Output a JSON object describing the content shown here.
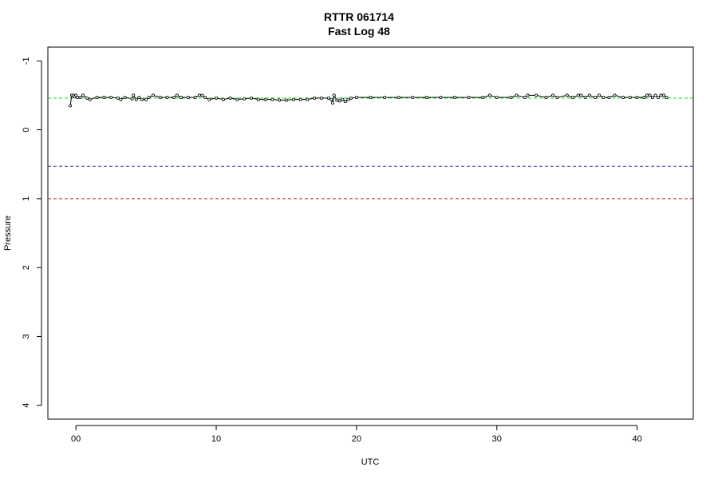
{
  "chart_data": {
    "type": "line",
    "title": "RTTR 061714",
    "subtitle": "Fast Log 48",
    "xlabel": "UTC",
    "ylabel": "Pressure",
    "xlim": [
      -2,
      44
    ],
    "ylim": [
      4.2,
      -1.2
    ],
    "y_reversed": true,
    "x_ticks": [
      0,
      10,
      20,
      30,
      40
    ],
    "x_tick_labels": [
      "00",
      "10",
      "20",
      "30",
      "40"
    ],
    "y_ticks": [
      -1,
      0,
      1,
      2,
      3,
      4
    ],
    "y_tick_labels": [
      "-1",
      "0",
      "1",
      "2",
      "3",
      "4"
    ],
    "grid": false,
    "reference_lines": [
      {
        "y": -0.46,
        "color": "#00dd00",
        "style": "dashed"
      },
      {
        "y": 0.53,
        "color": "#3333cc",
        "style": "dashed"
      },
      {
        "y": 1.0,
        "color": "#cc2222",
        "style": "dashed"
      }
    ],
    "series": [
      {
        "color": "#000000",
        "marker": "open-circle",
        "x": [
          -0.4,
          -0.3,
          -0.2,
          -0.1,
          0.0,
          0.1,
          0.3,
          0.5,
          0.8,
          1.0,
          1.5,
          2.0,
          2.5,
          3.0,
          3.2,
          3.5,
          4.0,
          4.1,
          4.3,
          4.5,
          4.7,
          5.0,
          5.2,
          5.5,
          6.0,
          6.5,
          7.0,
          7.2,
          7.5,
          8.0,
          8.5,
          8.8,
          9.0,
          9.2,
          9.5,
          10.0,
          10.5,
          11.0,
          11.5,
          12.0,
          12.5,
          13.0,
          13.5,
          14.0,
          14.5,
          15.0,
          15.5,
          16.0,
          16.5,
          17.0,
          17.5,
          18.0,
          18.2,
          18.3,
          18.4,
          18.6,
          18.8,
          19.0,
          19.2,
          19.4,
          19.6,
          20.0,
          21.0,
          22.0,
          23.0,
          24.0,
          25.0,
          26.0,
          27.0,
          28.0,
          29.0,
          29.5,
          30.0,
          31.0,
          31.4,
          32.0,
          32.2,
          32.8,
          33.5,
          34.0,
          34.3,
          35.0,
          35.4,
          35.8,
          36.0,
          36.3,
          36.6,
          37.0,
          37.3,
          37.6,
          38.0,
          38.4,
          39.0,
          39.5,
          40.0,
          40.5,
          40.7,
          40.9,
          41.1,
          41.3,
          41.5,
          41.7,
          41.9,
          42.1
        ],
        "y": [
          -0.35,
          -0.5,
          -0.5,
          -0.48,
          -0.5,
          -0.47,
          -0.47,
          -0.5,
          -0.46,
          -0.44,
          -0.47,
          -0.47,
          -0.47,
          -0.46,
          -0.44,
          -0.47,
          -0.45,
          -0.5,
          -0.44,
          -0.47,
          -0.44,
          -0.44,
          -0.47,
          -0.5,
          -0.47,
          -0.47,
          -0.47,
          -0.5,
          -0.47,
          -0.47,
          -0.47,
          -0.5,
          -0.5,
          -0.47,
          -0.44,
          -0.46,
          -0.44,
          -0.46,
          -0.44,
          -0.45,
          -0.46,
          -0.44,
          -0.44,
          -0.44,
          -0.43,
          -0.43,
          -0.44,
          -0.44,
          -0.44,
          -0.46,
          -0.46,
          -0.46,
          -0.44,
          -0.39,
          -0.5,
          -0.43,
          -0.42,
          -0.44,
          -0.41,
          -0.44,
          -0.46,
          -0.47,
          -0.47,
          -0.47,
          -0.47,
          -0.47,
          -0.47,
          -0.47,
          -0.47,
          -0.47,
          -0.47,
          -0.5,
          -0.47,
          -0.47,
          -0.5,
          -0.47,
          -0.5,
          -0.5,
          -0.47,
          -0.5,
          -0.47,
          -0.5,
          -0.47,
          -0.5,
          -0.5,
          -0.47,
          -0.5,
          -0.47,
          -0.5,
          -0.47,
          -0.47,
          -0.5,
          -0.47,
          -0.47,
          -0.47,
          -0.47,
          -0.5,
          -0.5,
          -0.47,
          -0.5,
          -0.47,
          -0.5,
          -0.5,
          -0.47
        ]
      }
    ]
  }
}
